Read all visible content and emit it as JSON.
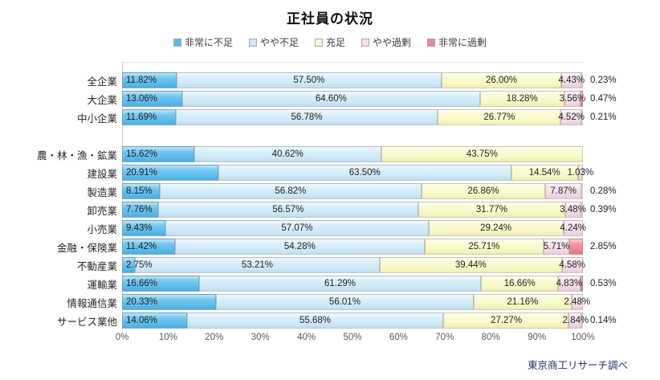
{
  "title": "正社員の状況",
  "footer": "東京商工リサーチ調べ",
  "legend": [
    {
      "label": "非常に不足",
      "color": "#56BBEB"
    },
    {
      "label": "やや不足",
      "color": "#CDE9F9"
    },
    {
      "label": "充足",
      "color": "#FAFAC8"
    },
    {
      "label": "やや過剰",
      "color": "#F6DCE5"
    },
    {
      "label": "非常に過剰",
      "color": "#F0858D"
    }
  ],
  "axis": {
    "ticks": [
      "0%",
      "10%",
      "20%",
      "30%",
      "40%",
      "50%",
      "60%",
      "70%",
      "80%",
      "90%",
      "100%"
    ],
    "min": 0,
    "max": 100
  },
  "chart_data": {
    "type": "bar",
    "orientation": "horizontal",
    "stacked": true,
    "title": "正社員の状況",
    "value_suffix": "%",
    "xlim": [
      0,
      100
    ],
    "grid": false,
    "legend_position": "top",
    "group_breaks": [
      3
    ],
    "categories": [
      "全企業",
      "大企業",
      "中小企業",
      "農・林・漁・鉱業",
      "建設業",
      "製造業",
      "卸売業",
      "小売業",
      "金融・保険業",
      "不動産業",
      "運輸業",
      "情報通信業",
      "サービス業他"
    ],
    "series": [
      {
        "name": "非常に不足",
        "label_position": "inside-base",
        "values": [
          11.82,
          13.06,
          11.69,
          15.62,
          20.91,
          8.15,
          7.76,
          9.43,
          11.42,
          2.75,
          16.66,
          20.33,
          14.06
        ]
      },
      {
        "name": "やや不足",
        "label_position": "center",
        "values": [
          57.5,
          64.6,
          56.78,
          40.62,
          63.5,
          56.82,
          56.57,
          57.07,
          54.28,
          53.21,
          61.29,
          56.01,
          55.68
        ]
      },
      {
        "name": "充足",
        "label_position": "center",
        "values": [
          26.0,
          18.28,
          26.77,
          43.75,
          14.54,
          26.86,
          31.77,
          29.24,
          25.71,
          39.44,
          16.66,
          21.16,
          27.27
        ]
      },
      {
        "name": "やや過剰",
        "label_position": "center",
        "values": [
          4.43,
          3.56,
          4.52,
          null,
          1.03,
          7.87,
          3.48,
          4.24,
          5.71,
          4.58,
          4.83,
          2.48,
          2.84
        ]
      },
      {
        "name": "非常に過剰",
        "label_position": "outside-end",
        "values": [
          0.23,
          0.47,
          0.21,
          null,
          null,
          0.28,
          0.39,
          null,
          2.85,
          null,
          0.53,
          null,
          0.14
        ]
      }
    ]
  }
}
